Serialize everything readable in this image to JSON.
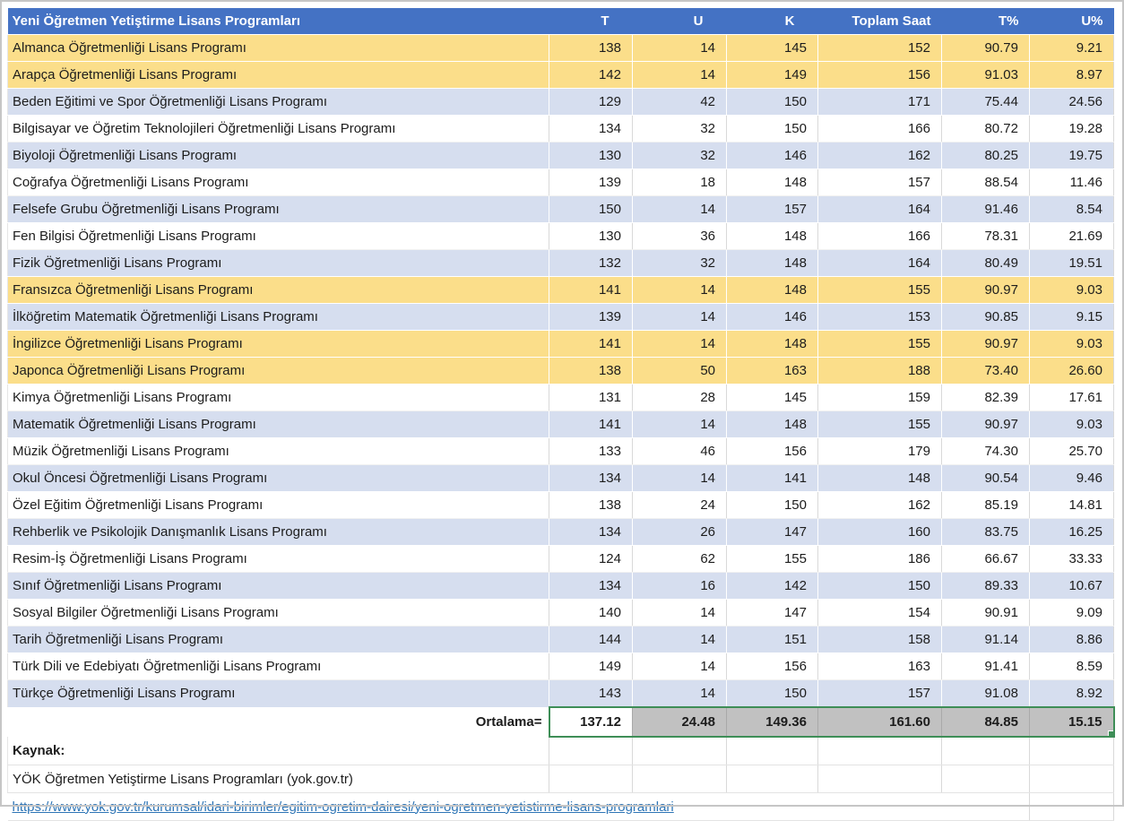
{
  "table": {
    "title": "Yeni Öğretmen Yetiştirme Lisans Programları",
    "columns": [
      "T",
      "U",
      "K",
      "Toplam Saat",
      "T%",
      "U%"
    ],
    "rows": [
      {
        "name": "Almanca Öğretmenliği Lisans Programı",
        "highlight": "yellow",
        "values": [
          "138",
          "14",
          "145",
          "152",
          "90.79",
          "9.21"
        ]
      },
      {
        "name": "Arapça Öğretmenliği Lisans Programı",
        "highlight": "yellow",
        "values": [
          "142",
          "14",
          "149",
          "156",
          "91.03",
          "8.97"
        ]
      },
      {
        "name": "Beden Eğitimi ve Spor Öğretmenliği Lisans Programı",
        "highlight": "blue",
        "values": [
          "129",
          "42",
          "150",
          "171",
          "75.44",
          "24.56"
        ]
      },
      {
        "name": "Bilgisayar ve Öğretim Teknolojileri Öğretmenliği Lisans Programı",
        "highlight": "white",
        "values": [
          "134",
          "32",
          "150",
          "166",
          "80.72",
          "19.28"
        ]
      },
      {
        "name": "Biyoloji Öğretmenliği Lisans Programı",
        "highlight": "blue",
        "values": [
          "130",
          "32",
          "146",
          "162",
          "80.25",
          "19.75"
        ]
      },
      {
        "name": "Coğrafya Öğretmenliği Lisans Programı",
        "highlight": "white",
        "values": [
          "139",
          "18",
          "148",
          "157",
          "88.54",
          "11.46"
        ]
      },
      {
        "name": "Felsefe Grubu Öğretmenliği Lisans Programı",
        "highlight": "blue",
        "values": [
          "150",
          "14",
          "157",
          "164",
          "91.46",
          "8.54"
        ]
      },
      {
        "name": "Fen Bilgisi Öğretmenliği Lisans Programı",
        "highlight": "white",
        "values": [
          "130",
          "36",
          "148",
          "166",
          "78.31",
          "21.69"
        ]
      },
      {
        "name": "Fizik Öğretmenliği Lisans Programı",
        "highlight": "blue",
        "values": [
          "132",
          "32",
          "148",
          "164",
          "80.49",
          "19.51"
        ]
      },
      {
        "name": "Fransızca Öğretmenliği Lisans Programı",
        "highlight": "yellow",
        "values": [
          "141",
          "14",
          "148",
          "155",
          "90.97",
          "9.03"
        ]
      },
      {
        "name": "İlköğretim Matematik Öğretmenliği Lisans Programı",
        "highlight": "blue",
        "values": [
          "139",
          "14",
          "146",
          "153",
          "90.85",
          "9.15"
        ]
      },
      {
        "name": "İngilizce Öğretmenliği Lisans Programı",
        "highlight": "yellow",
        "values": [
          "141",
          "14",
          "148",
          "155",
          "90.97",
          "9.03"
        ]
      },
      {
        "name": "Japonca Öğretmenliği Lisans Programı",
        "highlight": "yellow",
        "values": [
          "138",
          "50",
          "163",
          "188",
          "73.40",
          "26.60"
        ]
      },
      {
        "name": "Kimya Öğretmenliği Lisans Programı",
        "highlight": "white",
        "values": [
          "131",
          "28",
          "145",
          "159",
          "82.39",
          "17.61"
        ]
      },
      {
        "name": "Matematik Öğretmenliği Lisans Programı",
        "highlight": "blue",
        "values": [
          "141",
          "14",
          "148",
          "155",
          "90.97",
          "9.03"
        ]
      },
      {
        "name": "Müzik Öğretmenliği Lisans Programı",
        "highlight": "white",
        "values": [
          "133",
          "46",
          "156",
          "179",
          "74.30",
          "25.70"
        ]
      },
      {
        "name": "Okul Öncesi Öğretmenliği Lisans Programı",
        "highlight": "blue",
        "values": [
          "134",
          "14",
          "141",
          "148",
          "90.54",
          "9.46"
        ]
      },
      {
        "name": "Özel Eğitim Öğretmenliği Lisans Programı",
        "highlight": "white",
        "values": [
          "138",
          "24",
          "150",
          "162",
          "85.19",
          "14.81"
        ]
      },
      {
        "name": "Rehberlik ve Psikolojik Danışmanlık Lisans Programı",
        "highlight": "blue",
        "values": [
          "134",
          "26",
          "147",
          "160",
          "83.75",
          "16.25"
        ]
      },
      {
        "name": "Resim-İş Öğretmenliği Lisans Programı",
        "highlight": "white",
        "values": [
          "124",
          "62",
          "155",
          "186",
          "66.67",
          "33.33"
        ]
      },
      {
        "name": "Sınıf Öğretmenliği Lisans Programı",
        "highlight": "blue",
        "values": [
          "134",
          "16",
          "142",
          "150",
          "89.33",
          "10.67"
        ]
      },
      {
        "name": "Sosyal Bilgiler Öğretmenliği Lisans Programı",
        "highlight": "white",
        "values": [
          "140",
          "14",
          "147",
          "154",
          "90.91",
          "9.09"
        ]
      },
      {
        "name": "Tarih Öğretmenliği Lisans Programı",
        "highlight": "blue",
        "values": [
          "144",
          "14",
          "151",
          "158",
          "91.14",
          "8.86"
        ]
      },
      {
        "name": "Türk Dili ve Edebiyatı Öğretmenliği Lisans Programı",
        "highlight": "white",
        "values": [
          "149",
          "14",
          "156",
          "163",
          "91.41",
          "8.59"
        ]
      },
      {
        "name": "Türkçe Öğretmenliği Lisans Programı",
        "highlight": "blue",
        "values": [
          "143",
          "14",
          "150",
          "157",
          "91.08",
          "8.92"
        ]
      }
    ],
    "average": {
      "label": "Ortalama=",
      "values": [
        "137.12",
        "24.48",
        "149.36",
        "161.60",
        "84.85",
        "15.15"
      ]
    },
    "footer": {
      "kaynak_label": "Kaynak:",
      "source": "YÖK Öğretmen Yetiştirme Lisans Programları (yok.gov.tr)",
      "link": "https://www.yok.gov.tr/kurumsal/idari-birimler/egitim-ogretim-dairesi/yeni-ogretmen-yetistirme-lisans-programlari"
    }
  },
  "colors": {
    "header_bg": "#4472C4",
    "row_yellow": "#FBDE8A",
    "row_blue": "#D6DEEF",
    "average_gray": "#C1C1C1",
    "selection_green": "#3E8E57",
    "link_blue": "#2E75B6"
  }
}
